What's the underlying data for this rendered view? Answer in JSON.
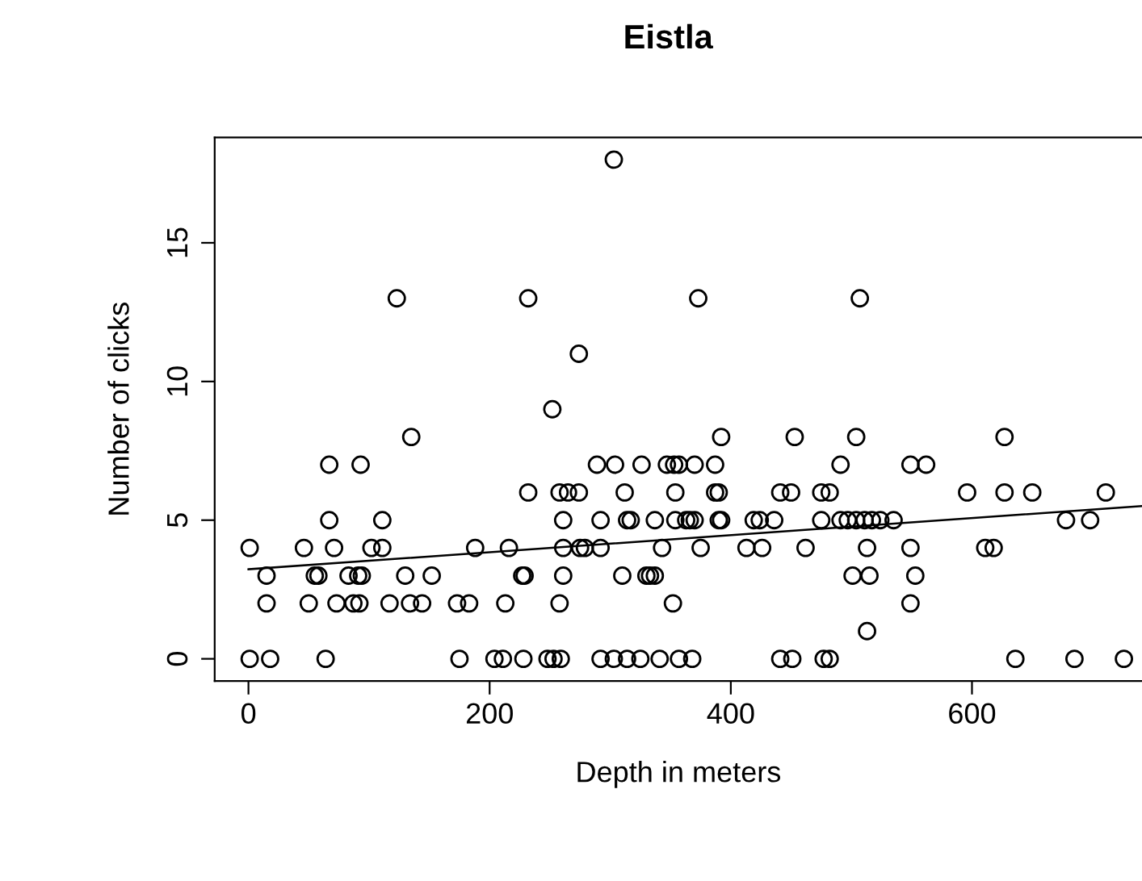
{
  "chart_data": {
    "type": "scatter",
    "title": "Eistla",
    "xlabel": "Depth in meters",
    "ylabel": "Number of clicks",
    "xlim": [
      -28,
      741
    ],
    "ylim": [
      -0.8,
      18.8
    ],
    "xticks": [
      0,
      200,
      400,
      600
    ],
    "yticks": [
      0,
      5,
      10,
      15
    ],
    "marker": "circle",
    "grid": false,
    "series": [
      {
        "color": "#000000",
        "x": [
          123,
          232,
          135,
          67,
          93,
          232,
          67,
          111,
          1,
          46,
          71,
          102,
          111,
          188,
          216,
          15,
          55,
          58,
          83,
          91,
          94,
          130,
          152,
          227,
          229,
          15,
          50,
          73,
          87,
          92,
          117,
          134,
          144,
          173,
          183,
          213,
          1,
          18,
          64,
          175,
          204,
          211,
          228,
          303,
          373,
          274,
          252,
          392,
          453,
          289,
          304,
          326,
          347,
          353,
          357,
          370,
          387,
          491,
          258,
          265,
          274,
          312,
          354,
          387,
          390,
          441,
          450,
          475,
          482,
          261,
          292,
          314,
          317,
          337,
          354,
          363,
          366,
          370,
          390,
          392,
          419,
          424,
          436,
          475,
          491,
          497,
          504,
          511,
          517,
          524,
          535,
          261,
          275,
          279,
          292,
          343,
          375,
          413,
          426,
          462,
          513,
          549,
          611,
          618,
          261,
          310,
          330,
          333,
          337,
          501,
          515,
          553,
          258,
          352,
          549,
          513,
          248,
          253,
          259,
          292,
          303,
          314,
          325,
          341,
          357,
          368,
          441,
          451,
          477,
          482,
          636,
          685,
          726,
          507,
          504,
          627,
          549,
          562,
          596,
          627,
          650,
          711,
          678,
          698
        ],
        "values": [
          13,
          13,
          8,
          7,
          7,
          6,
          5,
          5,
          4,
          4,
          4,
          4,
          4,
          4,
          4,
          3,
          3,
          3,
          3,
          3,
          3,
          3,
          3,
          3,
          3,
          2,
          2,
          2,
          2,
          2,
          2,
          2,
          2,
          2,
          2,
          2,
          0,
          0,
          0,
          0,
          0,
          0,
          0,
          18,
          13,
          11,
          9,
          8,
          8,
          7,
          7,
          7,
          7,
          7,
          7,
          7,
          7,
          7,
          6,
          6,
          6,
          6,
          6,
          6,
          6,
          6,
          6,
          6,
          6,
          5,
          5,
          5,
          5,
          5,
          5,
          5,
          5,
          5,
          5,
          5,
          5,
          5,
          5,
          5,
          5,
          5,
          5,
          5,
          5,
          5,
          5,
          4,
          4,
          4,
          4,
          4,
          4,
          4,
          4,
          4,
          4,
          4,
          4,
          4,
          3,
          3,
          3,
          3,
          3,
          3,
          3,
          3,
          2,
          2,
          2,
          1,
          0,
          0,
          0,
          0,
          0,
          0,
          0,
          0,
          0,
          0,
          0,
          0,
          0,
          0,
          0,
          0,
          0,
          13,
          8,
          8,
          7,
          7,
          6,
          6,
          6,
          6,
          5,
          5
        ]
      },
      {
        "type": "line",
        "marker": "none",
        "color": "#000000",
        "x": [
          0,
          741
        ],
        "values": [
          3.23,
          5.51
        ]
      }
    ]
  }
}
